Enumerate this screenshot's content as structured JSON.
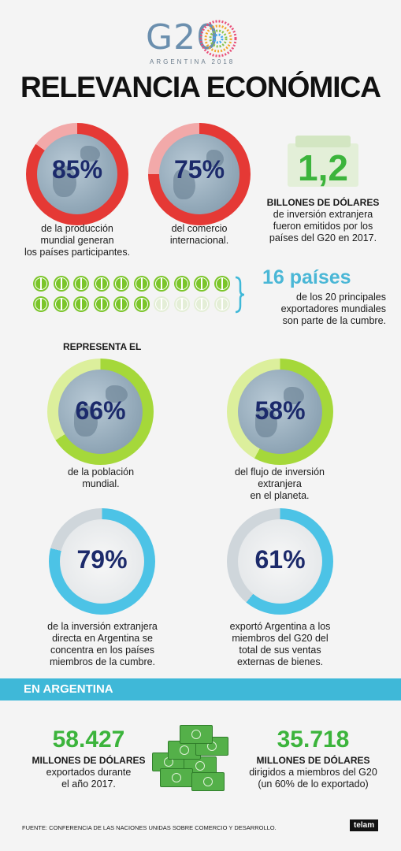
{
  "logo": {
    "mark": "G20",
    "subtitle": "ARGENTINA 2018"
  },
  "title": "RELEVANCIA ECONÓMICA",
  "top_stats": [
    {
      "value": "85%",
      "fraction": 0.85,
      "caption": [
        "de la producción",
        "mundial generan",
        "los países participantes."
      ]
    },
    {
      "value": "75%",
      "fraction": 0.75,
      "caption": [
        "del comercio",
        "internacional."
      ]
    }
  ],
  "investment": {
    "value": "1,2",
    "caption_bold": "BILLONES DE DÓLARES",
    "caption": [
      "de inversión extranjera",
      "fueron emitidos por los",
      "países del G20 en 2017."
    ]
  },
  "exporters": {
    "headline": "16 países",
    "caption": [
      "de los 20 principales",
      "exportadores mundiales",
      "son parte de la cumbre."
    ],
    "count_filled": 16,
    "count_total": 20
  },
  "represents_label": "REPRESENTA EL",
  "mid_stats": [
    {
      "value": "66%",
      "fraction": 0.66,
      "caption": [
        "de la población",
        "mundial."
      ]
    },
    {
      "value": "58%",
      "fraction": 0.58,
      "caption": [
        "del flujo de inversión",
        "extranjera",
        "en el planeta."
      ]
    }
  ],
  "low_stats": [
    {
      "value": "79%",
      "fraction": 0.79,
      "caption": [
        "de la inversión extranjera",
        "directa en Argentina se",
        "concentra en los países",
        "miembros de la cumbre."
      ]
    },
    {
      "value": "61%",
      "fraction": 0.61,
      "caption": [
        "exportó Argentina a los",
        "miembros del G20 del",
        "total de sus ventas",
        "externas de bienes."
      ]
    }
  ],
  "argentina": {
    "band_label": "EN ARGENTINA",
    "left": {
      "value": "58.427",
      "bold": "MILLONES DE DÓLARES",
      "caption": [
        "exportados durante",
        "el año 2017."
      ]
    },
    "right": {
      "value": "35.718",
      "bold": "MILLONES DE DÓLARES",
      "caption": [
        "dirigidos a miembros del G20",
        "(un 60% de lo exportado)"
      ]
    }
  },
  "source": "FUENTE: CONFERENCIA DE LAS NACIONES UNIDAS SOBRE COMERCIO Y DESARROLLO.",
  "brand": "telam",
  "colors": {
    "red": "#e53935",
    "green": "#a5d83a",
    "blue": "#4cc3e6",
    "dark_blue": "#1c2a6b",
    "money_green": "#3cb43c"
  }
}
